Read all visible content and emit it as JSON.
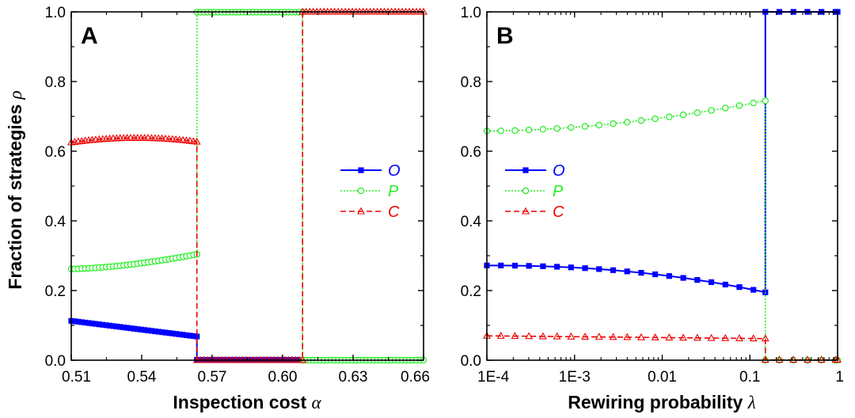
{
  "colors": {
    "O": "#0000ff",
    "P": "#22ee22",
    "C": "#ee0000",
    "axis": "#000000"
  },
  "shared": {
    "ylabel": "Fraction of strategies",
    "ylabel_symbol": "ρ",
    "legend": [
      "O",
      "P",
      "C"
    ]
  },
  "chart_data": [
    {
      "type": "line",
      "panel": "A",
      "xlabel": "Inspection cost",
      "xlabel_symbol": "α",
      "xlim": [
        0.51,
        0.66
      ],
      "ylim": [
        0,
        1
      ],
      "xticks": [
        0.51,
        0.54,
        0.57,
        0.6,
        0.63,
        0.66
      ],
      "xtick_labels": [
        "0.51",
        "0.54",
        "0.57",
        "0.60",
        "0.63",
        "0.66"
      ],
      "yticks": [
        0,
        0.2,
        0.4,
        0.6,
        0.8,
        1.0
      ],
      "ytick_labels": [
        "0.0",
        "0.2",
        "0.4",
        "0.6",
        "0.8",
        "1.0"
      ],
      "legend_position": "center-right",
      "transitions": [
        0.5635,
        0.6085
      ],
      "step": 0.0015,
      "series": [
        {
          "name": "O",
          "marker": "square",
          "line": "solid",
          "segments": [
            {
              "x0": 0.51,
              "x1": 0.5635,
              "y0": 0.113,
              "y1": 0.068
            },
            {
              "x0": 0.5635,
              "x1": 0.6085,
              "y0": 0.001,
              "y1": 0.001
            }
          ]
        },
        {
          "name": "P",
          "marker": "circle",
          "line": "dotted",
          "segments": [
            {
              "x0": 0.51,
              "x1": 0.5635,
              "y0": 0.262,
              "y1": 0.304,
              "curve": 1.6
            },
            {
              "x0": 0.5635,
              "x1": 0.6085,
              "y0": 0.999,
              "y1": 0.999
            },
            {
              "x0": 0.6085,
              "x1": 0.66,
              "y0": 0.0,
              "y1": 0.0
            }
          ]
        },
        {
          "name": "C",
          "marker": "triangle",
          "line": "dashed",
          "segments": [
            {
              "x0": 0.51,
              "x1": 0.5635,
              "y0": 0.625,
              "y1": 0.627,
              "bulge": 0.012
            },
            {
              "x0": 0.5635,
              "x1": 0.6085,
              "y0": 0.0,
              "y1": 0.0
            },
            {
              "x0": 0.6085,
              "x1": 0.66,
              "y0": 1.0,
              "y1": 1.0
            }
          ]
        }
      ]
    },
    {
      "type": "line",
      "panel": "B",
      "xlabel": "Rewiring probability",
      "xlabel_symbol": "λ",
      "xscale": "log",
      "xlim": [
        0.0001,
        1
      ],
      "ylim": [
        0,
        1
      ],
      "xticks": [
        0.0001,
        0.001,
        0.01,
        0.1,
        1
      ],
      "xtick_labels": [
        "1E-4",
        "1E-3",
        "0.01",
        "0.1",
        "1"
      ],
      "yticks": [
        0,
        0.2,
        0.4,
        0.6,
        0.8,
        1.0
      ],
      "ytick_labels": [
        "0.0",
        "0.2",
        "0.4",
        "0.6",
        "0.8",
        "1.0"
      ],
      "legend_position": "center-left",
      "transitions": [
        0.15
      ],
      "log_step": 0.16,
      "series": [
        {
          "name": "O",
          "marker": "square",
          "line": "solid",
          "segments": [
            {
              "x0": 0.0001,
              "x1": 0.15,
              "y0": 0.272,
              "y1": 0.195,
              "curve": 2.2
            },
            {
              "x0": 0.15,
              "x1": 1,
              "y0": 1.0,
              "y1": 1.0
            }
          ]
        },
        {
          "name": "P",
          "marker": "circle",
          "line": "dotted",
          "segments": [
            {
              "x0": 0.0001,
              "x1": 0.15,
              "y0": 0.658,
              "y1": 0.745,
              "curve": 1.8
            },
            {
              "x0": 0.15,
              "x1": 1,
              "y0": 0.0,
              "y1": 0.0
            }
          ]
        },
        {
          "name": "C",
          "marker": "triangle",
          "line": "dashed",
          "segments": [
            {
              "x0": 0.0001,
              "x1": 0.15,
              "y0": 0.07,
              "y1": 0.062
            },
            {
              "x0": 0.15,
              "x1": 1,
              "y0": 0.001,
              "y1": 0.001
            }
          ]
        }
      ]
    }
  ]
}
